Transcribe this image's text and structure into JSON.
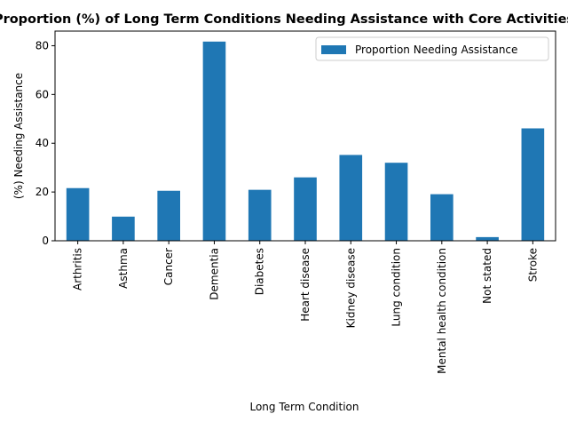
{
  "chart_data": {
    "type": "bar",
    "title": "Proportion (%) of Long Term Conditions Needing Assistance with Core Activities",
    "xlabel": "Long Term Condition",
    "ylabel": "(%) Needing Assistance",
    "categories": [
      "Arthritis",
      "Asthma",
      "Cancer",
      "Dementia",
      "Diabetes",
      "Heart disease",
      "Kidney disease",
      "Lung condition",
      "Mental health condition",
      "Not stated",
      "Stroke"
    ],
    "series": [
      {
        "name": "Proportion Needing Assistance",
        "color": "#1f77b4",
        "values": [
          21.6,
          9.9,
          20.5,
          81.7,
          20.9,
          26.0,
          35.2,
          32.0,
          19.1,
          1.5,
          46.1
        ]
      }
    ],
    "ylim": [
      0,
      86
    ],
    "yticks": [
      0,
      20,
      40,
      60,
      80
    ],
    "grid": false,
    "legend_position": "top-right"
  }
}
